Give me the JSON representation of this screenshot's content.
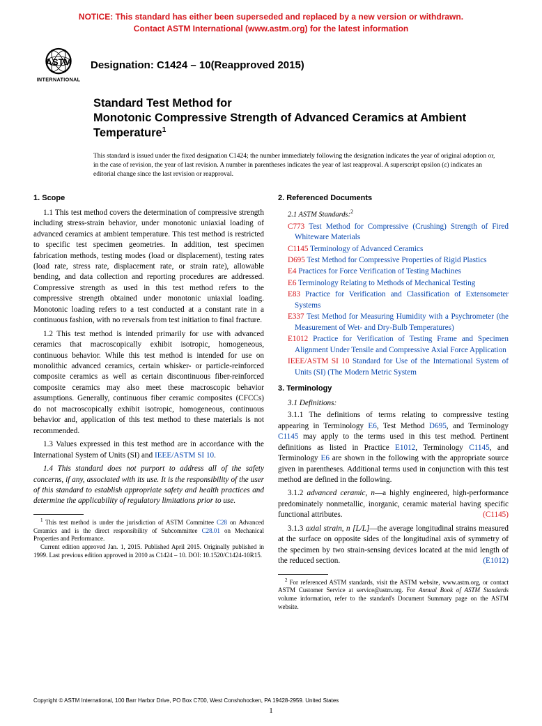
{
  "notice": {
    "line1": "NOTICE: This standard has either been superseded and replaced by a new version or withdrawn.",
    "line2": "Contact ASTM International (www.astm.org) for the latest information"
  },
  "designation": "Designation: C1424 – 10(Reapproved 2015)",
  "title": {
    "line1": "Standard Test Method for",
    "line2": "Monotonic Compressive Strength of Advanced Ceramics at Ambient Temperature",
    "sup": "1"
  },
  "issuance": "This standard is issued under the fixed designation C1424; the number immediately following the designation indicates the year of original adoption or, in the case of revision, the year of last revision. A number in parentheses indicates the year of last reapproval. A superscript epsilon (ε) indicates an editorial change since the last revision or reapproval.",
  "scope": {
    "head": "1. Scope",
    "p11": "1.1 This test method covers the determination of compressive strength including stress-strain behavior, under monotonic uniaxial loading of advanced ceramics at ambient temperature. This test method is restricted to specific test specimen geometries. In addition, test specimen fabrication methods, testing modes (load or displacement), testing rates (load rate, stress rate, displacement rate, or strain rate), allowable bending, and data collection and reporting procedures are addressed. Compressive strength as used in this test method refers to the compressive strength obtained under monotonic uniaxial loading. Monotonic loading refers to a test conducted at a constant rate in a continuous fashion, with no reversals from test initiation to final fracture.",
    "p12": "1.2 This test method is intended primarily for use with advanced ceramics that macroscopically exhibit isotropic, homogeneous, continuous behavior. While this test method is intended for use on monolithic advanced ceramics, certain whisker- or particle-reinforced composite ceramics as well as certain discontinuous fiber-reinforced composite ceramics may also meet these macroscopic behavior assumptions. Generally, continuous fiber ceramic composites (CFCCs) do not macroscopically exhibit isotropic, homogeneous, continuous behavior and, application of this test method to these materials is not recommended.",
    "p13a": "1.3 Values expressed in this test method are in accordance with the International System of Units (SI) and ",
    "p13link": "IEEE/ASTM SI 10",
    "p13b": ".",
    "p14": "1.4 This standard does not purport to address all of the safety concerns, if any, associated with its use. It is the responsibility of the user of this standard to establish appropriate safety and health practices and determine the applicability of regulatory limitations prior to use."
  },
  "refs": {
    "head": "2. Referenced Documents",
    "sub": "2.1 ASTM Standards:",
    "sup": "2",
    "items": [
      {
        "code": "C773",
        "txt": "Test Method for Compressive (Crushing) Strength of Fired Whiteware Materials"
      },
      {
        "code": "C1145",
        "txt": "Terminology of Advanced Ceramics"
      },
      {
        "code": "D695",
        "txt": "Test Method for Compressive Properties of Rigid Plastics"
      },
      {
        "code": "E4",
        "txt": "Practices for Force Verification of Testing Machines"
      },
      {
        "code": "E6",
        "txt": "Terminology Relating to Methods of Mechanical Testing"
      },
      {
        "code": "E83",
        "txt": "Practice for Verification and Classification of Extensometer Systems"
      },
      {
        "code": "E337",
        "txt": "Test Method for Measuring Humidity with a Psychrometer (the Measurement of Wet- and Dry-Bulb Temperatures)"
      },
      {
        "code": "E1012",
        "txt": "Practice for Verification of Testing Frame and Specimen Alignment Under Tensile and Compressive Axial Force Application"
      },
      {
        "code": "IEEE/ASTM SI 10",
        "txt": "Standard for Use of the International System of Units (SI) (The Modern Metric System"
      }
    ]
  },
  "term": {
    "head": "3. Terminology",
    "sub": "3.1 Definitions:",
    "p311a": "3.1.1 The definitions of terms relating to compressive testing appearing in Terminology ",
    "e6": "E6",
    "p311b": ", Test Method ",
    "d695": "D695",
    "p311c": ", and Terminology ",
    "c1145": "C1145",
    "p311d": " may apply to the terms used in this test method. Pertinent definitions as listed in Practice ",
    "e1012": "E1012",
    "p311e": ", Terminology ",
    "p311f": ", and Terminology ",
    "p311g": " are shown in the following with the appropriate source given in parentheses. Additional terms used in conjunction with this test method are defined in the following.",
    "p312a": "3.1.2 ",
    "p312term": "advanced ceramic, n",
    "p312b": "—a highly engineered, high-performance predominately nonmetallic, inorganic, ceramic material having specific functional attributes.",
    "p312ref": "(C1145)",
    "p313a": "3.1.3 ",
    "p313term": "axial strain, n [L/L]",
    "p313b": "—the average longitudinal strains measured at the surface on opposite sides of the longitudinal axis of symmetry of the specimen by two strain-sensing devices located at the mid length of the reduced section.",
    "p313ref": "(E1012)"
  },
  "fn1": {
    "a": "This test method is under the jurisdiction of ASTM Committee ",
    "c28": "C28",
    "b": " on Advanced Ceramics and is the direct responsibility of Subcommittee ",
    "c2801": "C28.01",
    "c": " on Mechanical Properties and Performance.",
    "d": "Current edition approved Jan. 1, 2015. Published April 2015. Originally published in 1999. Last previous edition approved in 2010 as C1424 – 10. DOI: 10.1520/C1424-10R15."
  },
  "fn2": {
    "a": "For referenced ASTM standards, visit the ASTM website, www.astm.org, or contact ASTM Customer Service at service@astm.org. For ",
    "b": "Annual Book of ASTM Standards",
    "c": " volume information, refer to the standard's Document Summary page on the ASTM website."
  },
  "copyright": "Copyright © ASTM International, 100 Barr Harbor Drive, PO Box C700, West Conshohocken, PA 19428-2959. United States",
  "pagenum": "1"
}
